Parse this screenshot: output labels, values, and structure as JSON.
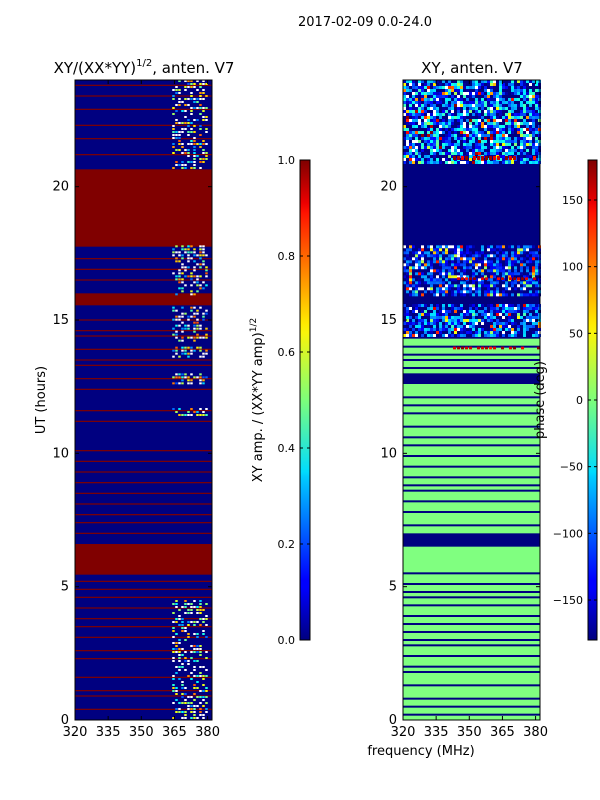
{
  "suptitle": "2017-02-09 0.0-24.0",
  "chart_data": [
    {
      "type": "heatmap",
      "panel": "amplitude",
      "title_main": "XY/(XX*YY)",
      "title_exp": "1/2",
      "title_tail": ", anten. V7",
      "xlabel": "",
      "ylabel": "UT (hours)",
      "xlim": [
        320,
        382
      ],
      "ylim": [
        0,
        24
      ],
      "xticks": [
        320,
        335,
        350,
        365,
        380
      ],
      "yticks": [
        0,
        5,
        10,
        15,
        20
      ],
      "colorbar": {
        "label_main": "XY amp. / (XX*YY amp)",
        "label_exp": "1/2",
        "range": [
          0.0,
          1.0
        ],
        "ticks": [
          0.0,
          0.2,
          0.4,
          0.6,
          0.8,
          1.0
        ],
        "ticklabels": [
          "0.0",
          "0.2",
          "0.4",
          "0.6",
          "0.8",
          "1.0"
        ],
        "colormap": "jet"
      },
      "background_value": 0.0,
      "bands": [
        {
          "ut_start": 5.45,
          "ut_end": 6.6,
          "value": 1.0
        },
        {
          "ut_start": 15.55,
          "ut_end": 16.0,
          "value": 1.0
        },
        {
          "ut_start": 17.75,
          "ut_end": 20.65,
          "value": 1.0
        }
      ],
      "lines": [
        0.4,
        0.9,
        1.1,
        1.6,
        2.3,
        2.6,
        3.1,
        3.5,
        3.8,
        4.2,
        4.6,
        4.9,
        5.2,
        7.0,
        7.4,
        7.7,
        8.1,
        8.5,
        8.9,
        9.3,
        9.7,
        10.1,
        11.2,
        11.6,
        12.4,
        12.8,
        13.3,
        13.5,
        13.9,
        14.4,
        14.6,
        15.0,
        16.5,
        16.9,
        17.3,
        21.2,
        21.8,
        22.3,
        22.9,
        23.4,
        23.8
      ],
      "speckle_band_freq": [
        364,
        380
      ],
      "speckle_regions": [
        [
          0.0,
          4.5,
          0.45
        ],
        [
          11.4,
          11.7,
          0.6
        ],
        [
          12.6,
          13.0,
          0.6
        ],
        [
          13.6,
          14.0,
          0.6
        ],
        [
          14.2,
          15.5,
          0.45
        ],
        [
          16.0,
          17.8,
          0.45
        ],
        [
          20.7,
          24.0,
          0.45
        ]
      ]
    },
    {
      "type": "heatmap",
      "panel": "phase",
      "title": "XY, anten. V7",
      "xlabel": "frequency (MHz)",
      "ylabel": "",
      "xlim": [
        320,
        382
      ],
      "ylim": [
        0,
        24
      ],
      "xticks": [
        320,
        335,
        350,
        365,
        380
      ],
      "yticks": [
        0,
        5,
        10,
        15,
        20
      ],
      "colorbar": {
        "label": "phase (deg)",
        "range": [
          -180,
          180
        ],
        "ticks": [
          -150,
          -100,
          -50,
          0,
          50,
          100,
          150
        ],
        "ticklabels": [
          "−150",
          "−100",
          "−50",
          "0",
          "50",
          "100",
          "150"
        ],
        "colormap": "jet"
      },
      "background_value": -180,
      "flat_bands": [
        {
          "ut_start": 0.0,
          "ut_end": 6.5,
          "value": 0
        },
        {
          "ut_start": 7.0,
          "ut_end": 12.6,
          "value": 0
        },
        {
          "ut_start": 13.0,
          "ut_end": 14.3,
          "value": 0
        }
      ],
      "noise_bands": [
        {
          "ut_start": 14.4,
          "ut_end": 15.6,
          "mean": -140,
          "spread": 90
        },
        {
          "ut_start": 15.9,
          "ut_end": 17.8,
          "mean": -150,
          "spread": 80
        },
        {
          "ut_start": 20.9,
          "ut_end": 24.0,
          "mean": -130,
          "spread": 110
        }
      ],
      "dark_lines": [
        0.2,
        0.5,
        0.8,
        1.3,
        1.8,
        2.0,
        2.4,
        2.8,
        3.0,
        3.3,
        3.6,
        3.9,
        4.3,
        4.6,
        4.8,
        5.1,
        5.5,
        7.3,
        7.8,
        8.2,
        8.6,
        8.8,
        9.1,
        9.5,
        9.9,
        10.3,
        10.6,
        11.0,
        11.5,
        11.8,
        12.1,
        13.2,
        13.5,
        13.7,
        14.0
      ],
      "hot_rows": [
        [
          13.9,
          14.0
        ],
        [
          16.5,
          16.6
        ],
        [
          21.0,
          21.15
        ]
      ]
    }
  ]
}
